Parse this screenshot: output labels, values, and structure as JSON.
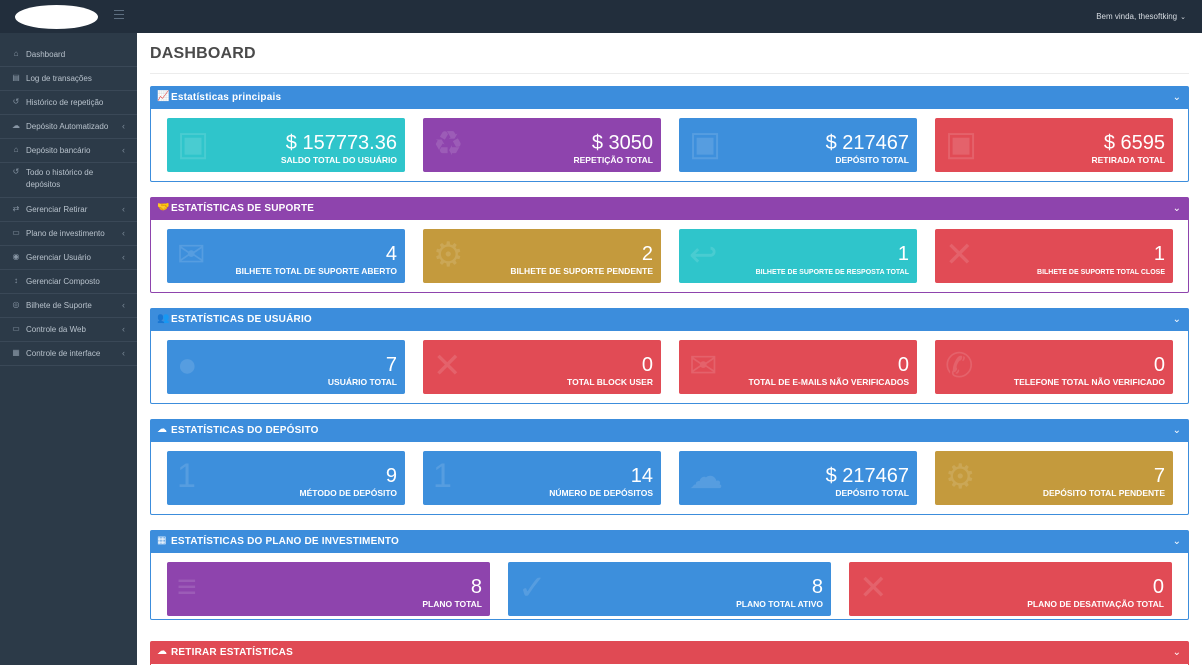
{
  "colors": {
    "teal": "#2fc5cb",
    "purple": "#8e44ad",
    "blue": "#3d8fdc",
    "red": "#e14b55",
    "gold": "#c49a3d",
    "header_blue": "#3c8ddc",
    "header_purple": "#8e44ad",
    "header_red": "#e04a54",
    "topbar": "#222e3c",
    "sidebar": "#2c3a48"
  },
  "header": {
    "welcome": "Bem vinda, thesoftking"
  },
  "sidebar": {
    "items": [
      {
        "label": "Dashboard",
        "icon": "home-icon",
        "glyph": "⌂",
        "chevron": false
      },
      {
        "label": "Log de transações",
        "icon": "list-icon",
        "glyph": "▤",
        "chevron": false
      },
      {
        "label": "Histórico de repetição",
        "icon": "history-icon",
        "glyph": "↺",
        "chevron": false
      },
      {
        "label": "Depósito Automatizado",
        "icon": "cloud-icon",
        "glyph": "☁",
        "chevron": true
      },
      {
        "label": "Depósito bancário",
        "icon": "bank-icon",
        "glyph": "⌂",
        "chevron": true
      },
      {
        "label": "Todo o histórico de depósitos",
        "icon": "history-icon",
        "glyph": "↺",
        "chevron": false
      },
      {
        "label": "Gerenciar Retirar",
        "icon": "transfer-icon",
        "glyph": "⇄",
        "chevron": true
      },
      {
        "label": "Plano de investimento",
        "icon": "document-icon",
        "glyph": "▭",
        "chevron": true
      },
      {
        "label": "Gerenciar Usuário",
        "icon": "users-icon",
        "glyph": "◉",
        "chevron": true
      },
      {
        "label": "Gerenciar Composto",
        "icon": "sort-icon",
        "glyph": "↕",
        "chevron": false
      },
      {
        "label": "Bilhete de Suporte",
        "icon": "ticket-icon",
        "glyph": "◎",
        "chevron": true
      },
      {
        "label": "Controle da Web",
        "icon": "desktop-icon",
        "glyph": "▭",
        "chevron": true
      },
      {
        "label": "Controle de interface",
        "icon": "grid-icon",
        "glyph": "▦",
        "chevron": true
      }
    ]
  },
  "main": {
    "title": "DASHBOARD",
    "panels": [
      {
        "title": "Estatísticas principais",
        "icon": "line-chart-icon",
        "glyph": "📈",
        "color": "#3c8ddc",
        "cards": [
          {
            "value": "$ 157773.36",
            "label": "SALDO TOTAL DO USUÁRIO",
            "color": "#2fc5cb",
            "icon": "money-icon"
          },
          {
            "value": "$ 3050",
            "label": "REPETIÇÃO TOTAL",
            "color": "#8e44ad",
            "icon": "recycle-icon"
          },
          {
            "value": "$ 217467",
            "label": "DEPÓSITO TOTAL",
            "color": "#3d8fdc",
            "icon": "money-icon"
          },
          {
            "value": "$ 6595",
            "label": "RETIRADA TOTAL",
            "color": "#e14b55",
            "icon": "money-icon"
          }
        ]
      },
      {
        "title": "ESTATÍSTICAS DE SUPORTE",
        "icon": "handshake-icon",
        "glyph": "🤝",
        "color": "#8e44ad",
        "cards": [
          {
            "value": "4",
            "label": "BILHETE TOTAL DE SUPORTE ABERTO",
            "color": "#3d8fdc",
            "icon": "envelope-icon"
          },
          {
            "value": "2",
            "label": "BILHETE DE SUPORTE PENDENTE",
            "color": "#c49a3d",
            "icon": "spinner-icon"
          },
          {
            "value": "1",
            "label": "BILHETE DE SUPORTE DE RESPOSTA TOTAL",
            "color": "#2fc5cb",
            "icon": "reply-icon",
            "small": true
          },
          {
            "value": "1",
            "label": "BILHETE DE SUPORTE TOTAL CLOSE",
            "color": "#e14b55",
            "icon": "close-icon",
            "small": true
          }
        ]
      },
      {
        "title": "ESTATÍSTICAS DE USUÁRIO",
        "icon": "users-icon",
        "glyph": "👥",
        "color": "#3c8ddc",
        "cards": [
          {
            "value": "7",
            "label": "USUÁRIO TOTAL",
            "color": "#3d8fdc",
            "icon": "users-icon"
          },
          {
            "value": "0",
            "label": "TOTAL BLOCK USER",
            "color": "#e14b55",
            "icon": "close-icon"
          },
          {
            "value": "0",
            "label": "TOTAL DE E-MAILS NÃO VERIFICADOS",
            "color": "#e14b55",
            "icon": "envelope-icon"
          },
          {
            "value": "0",
            "label": "TELEFONE TOTAL NÃO VERIFICADO",
            "color": "#e14b55",
            "icon": "phone-icon"
          }
        ]
      },
      {
        "title": "ESTATÍSTICAS DO DEPÓSITO",
        "icon": "cloud-download-icon",
        "glyph": "☁",
        "color": "#3c8ddc",
        "cards": [
          {
            "value": "9",
            "label": "MÉTODO DE DEPÓSITO",
            "color": "#3d8fdc",
            "icon": "numbers-icon"
          },
          {
            "value": "14",
            "label": "NÚMERO DE DEPÓSITOS",
            "color": "#3d8fdc",
            "icon": "numbers-icon"
          },
          {
            "value": "$ 217467",
            "label": "DEPÓSITO TOTAL",
            "color": "#3d8fdc",
            "icon": "cloud-download-icon"
          },
          {
            "value": "7",
            "label": "DEPÓSITO TOTAL PENDENTE",
            "color": "#c49a3d",
            "icon": "spinner-icon"
          }
        ]
      },
      {
        "title": "ESTATÍSTICAS DO PLANO DE INVESTIMENTO",
        "icon": "grid-icon",
        "glyph": "▦",
        "color": "#3c8ddc",
        "cards": [
          {
            "value": "8",
            "label": "PLANO TOTAL",
            "color": "#8e44ad",
            "icon": "list-icon"
          },
          {
            "value": "8",
            "label": "PLANO TOTAL ATIVO",
            "color": "#3d8fdc",
            "icon": "check-icon"
          },
          {
            "value": "0",
            "label": "PLANO DE DESATIVAÇÃO TOTAL",
            "color": "#e14b55",
            "icon": "close-icon"
          }
        ]
      },
      {
        "title": "RETIRAR ESTATÍSTICAS",
        "icon": "cloud-upload-icon",
        "glyph": "☁",
        "color": "#e04a54",
        "cards": []
      }
    ]
  }
}
